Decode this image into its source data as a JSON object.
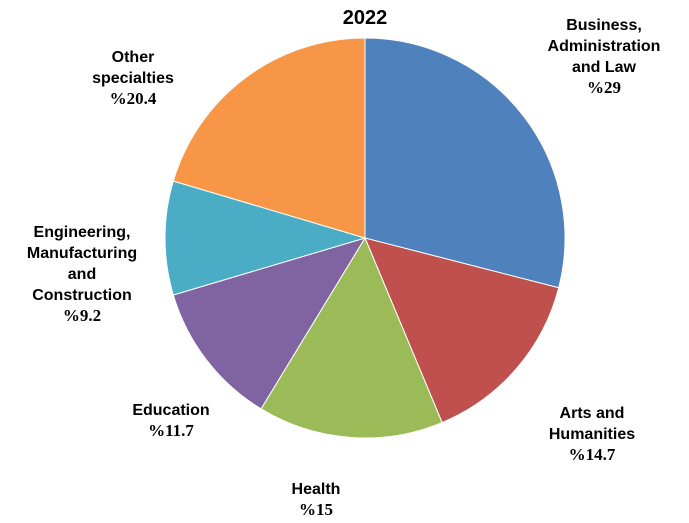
{
  "chart_data": {
    "type": "pie",
    "title": "2022",
    "slices": [
      {
        "name_lines": [
          "Business,",
          "Administration",
          "and Law"
        ],
        "value": 29,
        "value_label": "%29",
        "color": "#4F81BD"
      },
      {
        "name_lines": [
          "Arts and",
          "Humanities"
        ],
        "value": 14.7,
        "value_label": "%14.7",
        "color": "#C0504D"
      },
      {
        "name_lines": [
          "Health"
        ],
        "value": 15,
        "value_label": "%15",
        "color": "#9BBB59"
      },
      {
        "name_lines": [
          "Education"
        ],
        "value": 11.7,
        "value_label": "%11.7",
        "color": "#8064A2"
      },
      {
        "name_lines": [
          "Engineering,",
          "Manufacturing",
          "and",
          "Construction"
        ],
        "value": 9.2,
        "value_label": "%9.2",
        "color": "#4BACC6"
      },
      {
        "name_lines": [
          "Other",
          "specialties"
        ],
        "value": 20.4,
        "value_label": "%20.4",
        "color": "#F79646"
      }
    ],
    "start_angle_deg": 0,
    "direction": "clockwise"
  }
}
